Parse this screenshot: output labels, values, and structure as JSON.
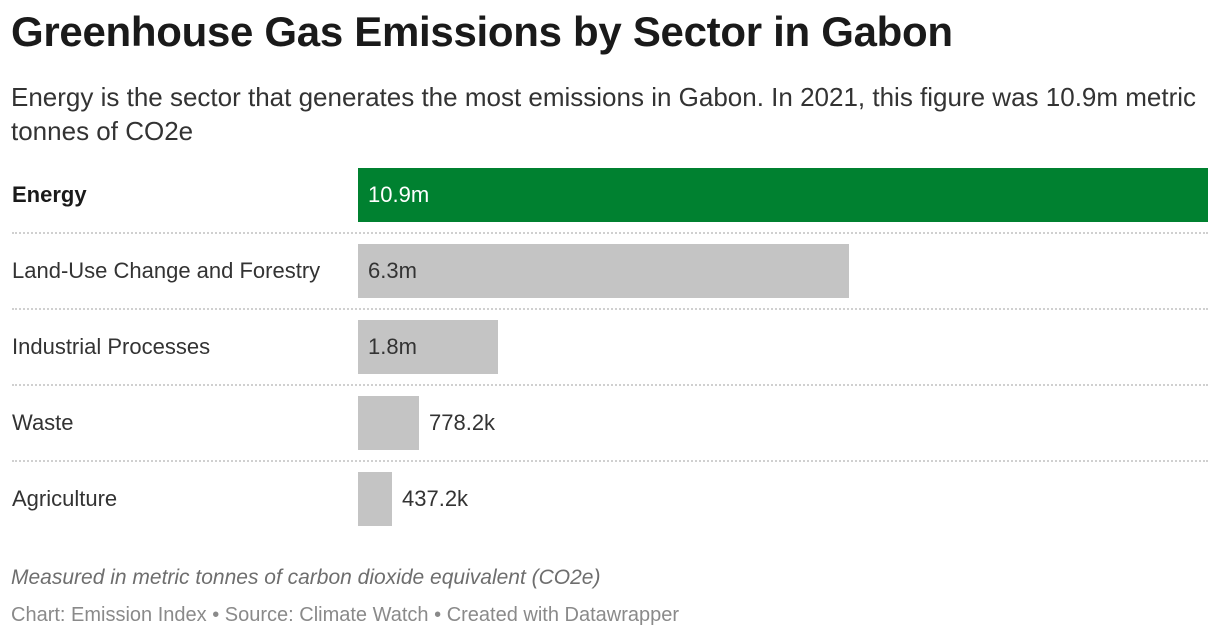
{
  "header": {
    "title": "Greenhouse Gas Emissions by Sector in Gabon",
    "subtitle": "Energy is the sector that generates the most emissions in Gabon. In 2021, this figure was 10.9m metric tonnes of CO2e"
  },
  "chart_data": {
    "type": "bar",
    "orientation": "horizontal",
    "categories": [
      "Energy",
      "Land-Use Change and Forestry",
      "Industrial Processes",
      "Waste",
      "Agriculture"
    ],
    "values": [
      10900000,
      6300000,
      1800000,
      778200,
      437200
    ],
    "value_labels": [
      "10.9m",
      "6.3m",
      "1.8m",
      "778.2k",
      "437.2k"
    ],
    "highlight_category": "Energy",
    "colors": {
      "highlight": "#008130",
      "default": "#c4c4c4",
      "highlight_text": "#ffffff",
      "default_text": "#333333"
    },
    "xlim": [
      0,
      10900000
    ],
    "grid": false
  },
  "footer": {
    "notes": "Measured in metric tonnes of carbon dioxide equivalent (CO2e)",
    "credit_chart": "Chart: Emission Index",
    "credit_source": "Source: Climate Watch",
    "credit_tool": "Created with Datawrapper",
    "separator": "•"
  }
}
